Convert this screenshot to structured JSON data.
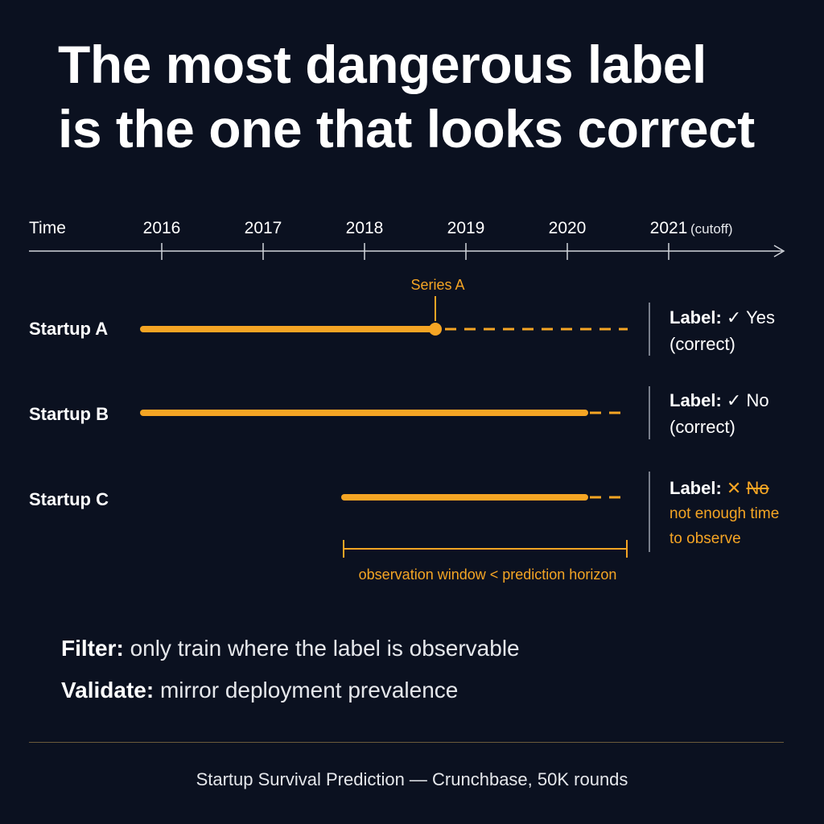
{
  "title": {
    "line1": "The most dangerous label",
    "line2": "is the one that looks correct"
  },
  "timeline": {
    "axis_label": "Time",
    "years": [
      "2016",
      "2017",
      "2018",
      "2019",
      "2020",
      "2021"
    ],
    "cutoff_note": "(cutoff)"
  },
  "rows": [
    {
      "name": "Startup A",
      "label_key": "Label:",
      "check": "✓",
      "label_value": "Yes",
      "status": "(correct)",
      "event": "Series A"
    },
    {
      "name": "Startup B",
      "label_key": "Label:",
      "check": "✓",
      "label_value": "No",
      "status": "(correct)"
    },
    {
      "name": "Startup C",
      "label_key": "Label:",
      "cross": "✕",
      "label_value": "No",
      "note_line1": "not enough time",
      "note_line2": "to observe",
      "window_note": "observation window < prediction horizon"
    }
  ],
  "takeaways": [
    {
      "key": "Filter:",
      "text": "only train where the label is observable"
    },
    {
      "key": "Validate:",
      "text": "mirror deployment prevalence"
    }
  ],
  "footer": "Startup Survival Prediction — Crunchbase, 50K rounds",
  "colors": {
    "background": "#0b1120",
    "accent": "#f5a524",
    "text": "#ffffff"
  }
}
